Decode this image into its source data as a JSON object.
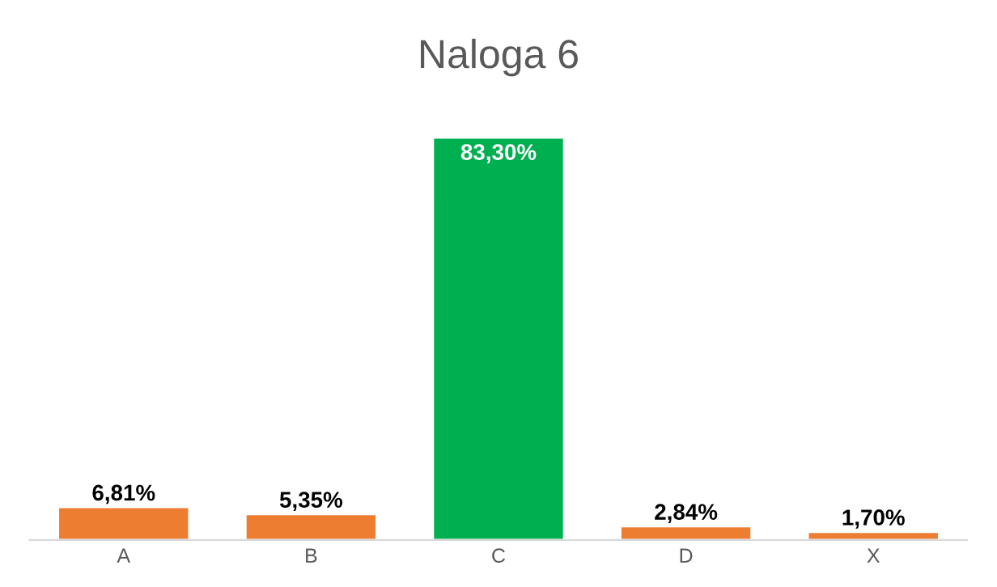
{
  "chart_data": {
    "type": "bar",
    "title": "Naloga 6",
    "categories": [
      "A",
      "B",
      "C",
      "D",
      "X"
    ],
    "values": [
      6.81,
      5.35,
      83.3,
      2.84,
      1.7
    ],
    "colors": [
      "#ed7d31",
      "#ed7d31",
      "#00b050",
      "#ed7d31",
      "#ed7d31"
    ],
    "value_labels": [
      "6,81%",
      "5,35%",
      "83,30%",
      "2,84%",
      "1,70%"
    ],
    "tick_labels": "x",
    "grid": false,
    "legend": false
  }
}
